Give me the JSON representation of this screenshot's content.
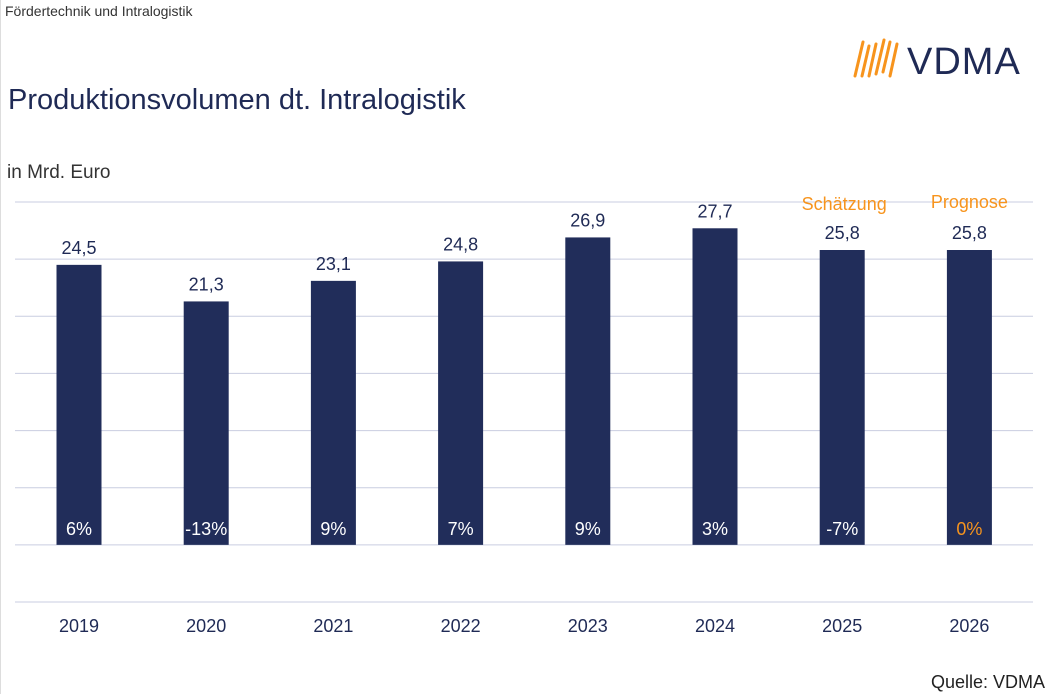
{
  "header": {
    "supertitle": "Fördertechnik und Intralogistik",
    "logo_text": "VDMA",
    "title": "Produktionsvolumen dt. Intralogistik",
    "unit": "in Mrd. Euro"
  },
  "footer": {
    "source": "Quelle: VDMA"
  },
  "colors": {
    "bar": "#212d5a",
    "text": "#1f2a55",
    "accent": "#f7941d",
    "grid": "#c9cde0"
  },
  "chart_data": {
    "type": "bar",
    "categories": [
      "2019",
      "2020",
      "2021",
      "2022",
      "2023",
      "2024",
      "2025",
      "2026"
    ],
    "values": [
      24.5,
      21.3,
      23.1,
      24.8,
      26.9,
      27.7,
      25.8,
      25.8
    ],
    "value_labels": [
      "24,5",
      "21,3",
      "23,1",
      "24,8",
      "26,9",
      "27,7",
      "25,8",
      "25,8"
    ],
    "change_labels": [
      "6%",
      "-13%",
      "9%",
      "7%",
      "9%",
      "3%",
      "-7%",
      "0%"
    ],
    "annotations": [
      {
        "category": "2025",
        "text": "Schätzung"
      },
      {
        "category": "2026",
        "text": "Prognose"
      }
    ],
    "ylim": [
      -5,
      30
    ],
    "grid": true,
    "ytick_step": 5
  }
}
